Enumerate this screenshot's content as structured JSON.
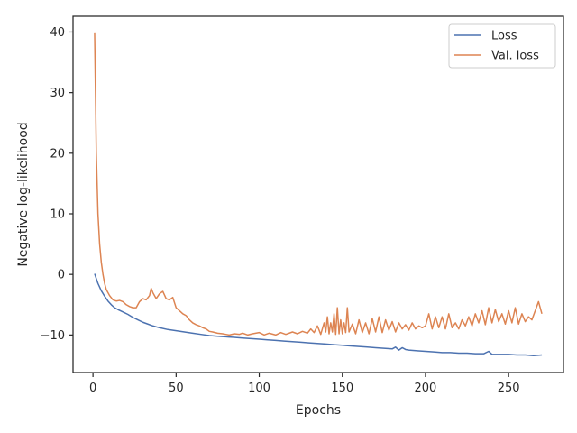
{
  "chart_data": {
    "type": "line",
    "title": "",
    "xlabel": "Epochs",
    "ylabel": "Negative log-likelihood",
    "xlim": [
      -12,
      283
    ],
    "ylim": [
      -16.2,
      42.6
    ],
    "xticks": [
      0,
      50,
      100,
      150,
      200,
      250
    ],
    "yticks": [
      40,
      30,
      20,
      10,
      0,
      -10
    ],
    "ytick_labels": [
      "40",
      "30",
      "20",
      "10",
      "0",
      "−10"
    ],
    "grid": false,
    "legend_position": "top-right",
    "series": [
      {
        "name": "Loss",
        "color": "#4c72b0",
        "points": [
          [
            1,
            0.1
          ],
          [
            3,
            -1.5
          ],
          [
            5,
            -2.7
          ],
          [
            7,
            -3.6
          ],
          [
            9,
            -4.4
          ],
          [
            11,
            -5.0
          ],
          [
            13,
            -5.5
          ],
          [
            15,
            -5.8
          ],
          [
            18,
            -6.2
          ],
          [
            21,
            -6.6
          ],
          [
            24,
            -7.1
          ],
          [
            27,
            -7.5
          ],
          [
            30,
            -7.9
          ],
          [
            33,
            -8.2
          ],
          [
            36,
            -8.5
          ],
          [
            40,
            -8.8
          ],
          [
            45,
            -9.1
          ],
          [
            50,
            -9.3
          ],
          [
            55,
            -9.5
          ],
          [
            60,
            -9.7
          ],
          [
            65,
            -9.9
          ],
          [
            70,
            -10.1
          ],
          [
            75,
            -10.2
          ],
          [
            80,
            -10.3
          ],
          [
            85,
            -10.4
          ],
          [
            90,
            -10.5
          ],
          [
            95,
            -10.6
          ],
          [
            100,
            -10.7
          ],
          [
            105,
            -10.8
          ],
          [
            110,
            -10.9
          ],
          [
            115,
            -11.0
          ],
          [
            120,
            -11.1
          ],
          [
            125,
            -11.2
          ],
          [
            130,
            -11.3
          ],
          [
            135,
            -11.4
          ],
          [
            140,
            -11.5
          ],
          [
            145,
            -11.6
          ],
          [
            150,
            -11.7
          ],
          [
            155,
            -11.8
          ],
          [
            160,
            -11.9
          ],
          [
            165,
            -12.0
          ],
          [
            170,
            -12.1
          ],
          [
            175,
            -12.2
          ],
          [
            180,
            -12.3
          ],
          [
            182,
            -12.0
          ],
          [
            184,
            -12.5
          ],
          [
            186,
            -12.1
          ],
          [
            188,
            -12.4
          ],
          [
            190,
            -12.5
          ],
          [
            195,
            -12.6
          ],
          [
            200,
            -12.7
          ],
          [
            205,
            -12.8
          ],
          [
            210,
            -12.9
          ],
          [
            215,
            -12.9
          ],
          [
            220,
            -13.0
          ],
          [
            225,
            -13.0
          ],
          [
            230,
            -13.1
          ],
          [
            235,
            -13.1
          ],
          [
            238,
            -12.7
          ],
          [
            240,
            -13.2
          ],
          [
            245,
            -13.2
          ],
          [
            250,
            -13.2
          ],
          [
            255,
            -13.3
          ],
          [
            260,
            -13.3
          ],
          [
            265,
            -13.4
          ],
          [
            270,
            -13.3
          ]
        ]
      },
      {
        "name": "Val. loss",
        "color": "#dd8452",
        "points": [
          [
            1,
            39.8
          ],
          [
            2,
            20.0
          ],
          [
            3,
            10.0
          ],
          [
            4,
            5.0
          ],
          [
            5,
            2.0
          ],
          [
            6,
            0.0
          ],
          [
            7,
            -1.5
          ],
          [
            8,
            -2.5
          ],
          [
            10,
            -3.5
          ],
          [
            12,
            -4.2
          ],
          [
            14,
            -4.4
          ],
          [
            16,
            -4.3
          ],
          [
            18,
            -4.5
          ],
          [
            20,
            -5.0
          ],
          [
            22,
            -5.3
          ],
          [
            24,
            -5.5
          ],
          [
            26,
            -5.5
          ],
          [
            28,
            -4.5
          ],
          [
            30,
            -4.0
          ],
          [
            32,
            -4.2
          ],
          [
            34,
            -3.5
          ],
          [
            35,
            -2.3
          ],
          [
            36,
            -3.0
          ],
          [
            38,
            -4.0
          ],
          [
            40,
            -3.2
          ],
          [
            42,
            -2.8
          ],
          [
            44,
            -4.0
          ],
          [
            46,
            -4.2
          ],
          [
            48,
            -3.8
          ],
          [
            50,
            -5.5
          ],
          [
            52,
            -6.0
          ],
          [
            54,
            -6.5
          ],
          [
            56,
            -6.8
          ],
          [
            58,
            -7.5
          ],
          [
            60,
            -8.0
          ],
          [
            62,
            -8.3
          ],
          [
            64,
            -8.5
          ],
          [
            66,
            -8.8
          ],
          [
            68,
            -9.0
          ],
          [
            70,
            -9.4
          ],
          [
            72,
            -9.5
          ],
          [
            75,
            -9.7
          ],
          [
            78,
            -9.8
          ],
          [
            80,
            -9.9
          ],
          [
            82,
            -10.0
          ],
          [
            85,
            -9.8
          ],
          [
            88,
            -9.9
          ],
          [
            90,
            -9.7
          ],
          [
            93,
            -10.0
          ],
          [
            96,
            -9.8
          ],
          [
            100,
            -9.6
          ],
          [
            103,
            -10.0
          ],
          [
            106,
            -9.7
          ],
          [
            110,
            -10.0
          ],
          [
            113,
            -9.6
          ],
          [
            116,
            -9.9
          ],
          [
            120,
            -9.5
          ],
          [
            123,
            -9.8
          ],
          [
            126,
            -9.4
          ],
          [
            129,
            -9.7
          ],
          [
            131,
            -9.0
          ],
          [
            133,
            -9.6
          ],
          [
            135,
            -8.5
          ],
          [
            137,
            -9.9
          ],
          [
            139,
            -8.0
          ],
          [
            140,
            -9.5
          ],
          [
            141,
            -7.0
          ],
          [
            142,
            -9.8
          ],
          [
            143,
            -8.0
          ],
          [
            144,
            -9.5
          ],
          [
            145,
            -6.5
          ],
          [
            146,
            -9.9
          ],
          [
            147,
            -5.5
          ],
          [
            148,
            -9.8
          ],
          [
            149,
            -7.5
          ],
          [
            150,
            -9.8
          ],
          [
            151,
            -8.0
          ],
          [
            152,
            -9.6
          ],
          [
            153,
            -5.5
          ],
          [
            154,
            -9.5
          ],
          [
            156,
            -8.2
          ],
          [
            158,
            -9.8
          ],
          [
            160,
            -7.5
          ],
          [
            162,
            -9.6
          ],
          [
            164,
            -8.0
          ],
          [
            166,
            -9.8
          ],
          [
            168,
            -7.3
          ],
          [
            170,
            -9.5
          ],
          [
            172,
            -7.0
          ],
          [
            174,
            -9.6
          ],
          [
            176,
            -7.5
          ],
          [
            178,
            -9.2
          ],
          [
            180,
            -7.8
          ],
          [
            182,
            -9.5
          ],
          [
            184,
            -8.0
          ],
          [
            186,
            -9.0
          ],
          [
            188,
            -8.3
          ],
          [
            190,
            -9.2
          ],
          [
            192,
            -8.0
          ],
          [
            194,
            -9.0
          ],
          [
            196,
            -8.5
          ],
          [
            198,
            -8.8
          ],
          [
            200,
            -8.5
          ],
          [
            202,
            -6.5
          ],
          [
            204,
            -9.0
          ],
          [
            206,
            -7.0
          ],
          [
            208,
            -8.8
          ],
          [
            210,
            -7.0
          ],
          [
            212,
            -9.0
          ],
          [
            214,
            -6.5
          ],
          [
            216,
            -8.8
          ],
          [
            218,
            -8.0
          ],
          [
            220,
            -9.0
          ],
          [
            222,
            -7.5
          ],
          [
            224,
            -8.5
          ],
          [
            226,
            -7.0
          ],
          [
            228,
            -8.5
          ],
          [
            230,
            -6.5
          ],
          [
            232,
            -8.0
          ],
          [
            234,
            -6.0
          ],
          [
            236,
            -8.3
          ],
          [
            238,
            -5.5
          ],
          [
            240,
            -8.0
          ],
          [
            242,
            -5.8
          ],
          [
            244,
            -7.8
          ],
          [
            246,
            -6.5
          ],
          [
            248,
            -8.2
          ],
          [
            250,
            -6.0
          ],
          [
            252,
            -8.0
          ],
          [
            254,
            -5.5
          ],
          [
            256,
            -8.2
          ],
          [
            258,
            -6.5
          ],
          [
            260,
            -7.8
          ],
          [
            262,
            -7.0
          ],
          [
            264,
            -7.5
          ],
          [
            266,
            -6.0
          ],
          [
            268,
            -4.5
          ],
          [
            270,
            -6.5
          ]
        ]
      }
    ]
  }
}
